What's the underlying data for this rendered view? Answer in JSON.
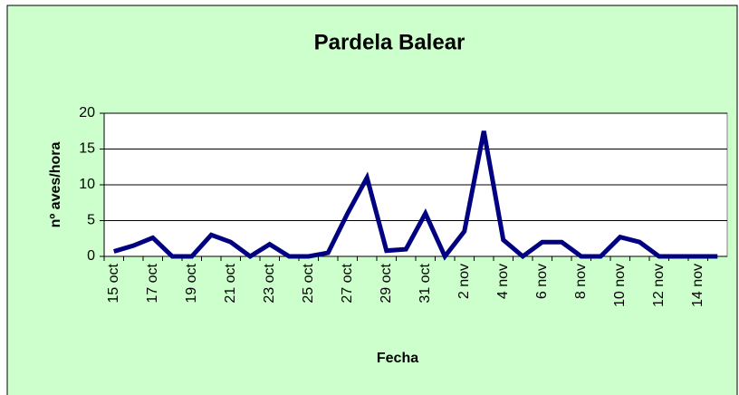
{
  "chart_data": {
    "type": "line",
    "title": "Pardela Balear",
    "x_label": "Fecha",
    "y_label": "nº aves/hora",
    "categories": [
      "15 oct",
      null,
      "17 oct",
      null,
      "19 oct",
      null,
      "21 oct",
      null,
      "23 oct",
      null,
      "25 oct",
      null,
      "27 oct",
      null,
      "29 oct",
      null,
      "31 oct",
      null,
      "2 nov",
      null,
      "4 nov",
      null,
      "6 nov",
      null,
      "8 nov",
      null,
      "10 nov",
      null,
      "12 nov",
      null,
      "14 nov",
      null
    ],
    "series": [
      {
        "name": "Pardela Balear",
        "color": "#000080",
        "values": [
          0.7,
          1.5,
          2.6,
          0,
          0,
          3,
          2,
          0,
          1.7,
          0,
          0,
          0.5,
          6,
          11,
          0.8,
          1,
          6,
          0,
          3.5,
          17.5,
          2.3,
          0,
          2,
          2,
          0,
          0,
          2.7,
          2,
          0,
          0,
          0,
          0
        ]
      }
    ],
    "ylim": [
      0,
      20
    ],
    "yticks": [
      0,
      5,
      10,
      15,
      20
    ],
    "grid": true
  }
}
